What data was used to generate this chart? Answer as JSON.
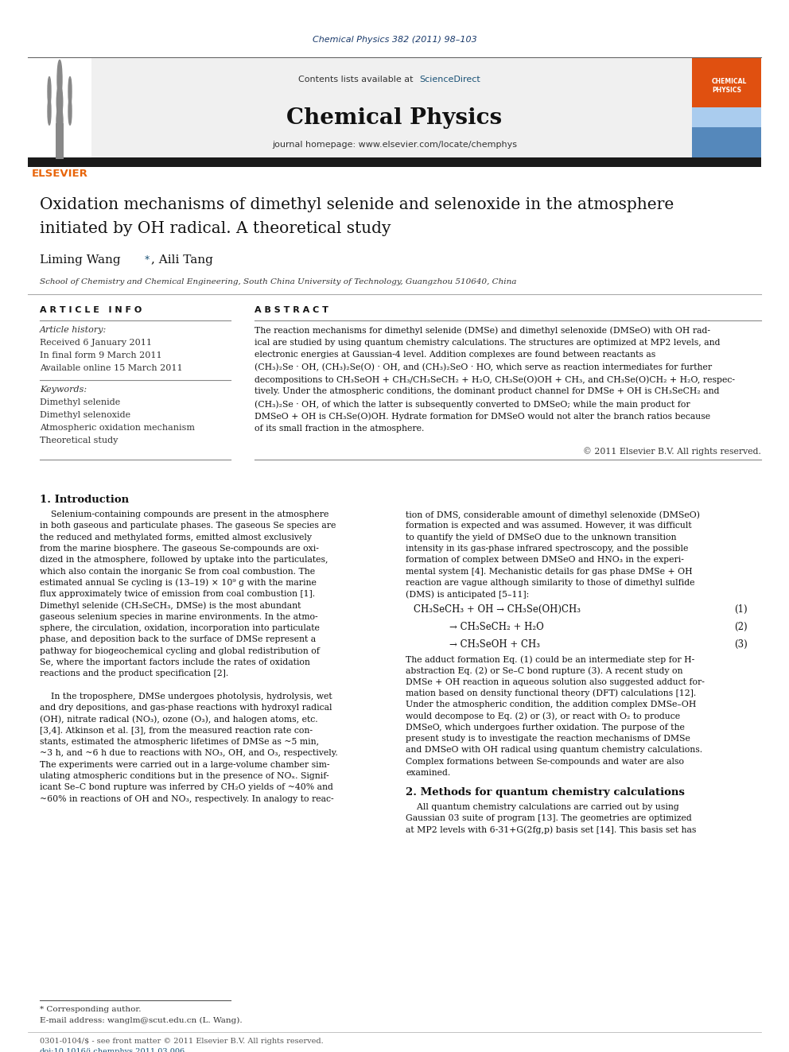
{
  "page_width": 9.92,
  "page_height": 13.23,
  "bg_color": "#ffffff",
  "journal_ref": "Chemical Physics 382 (2011) 98–103",
  "journal_ref_color": "#1a3a6b",
  "contents_text": "Contents lists available at ",
  "sciencedirect_text": "ScienceDirect",
  "sciencedirect_color": "#1a5276",
  "journal_name": "Chemical Physics",
  "journal_homepage": "journal homepage: www.elsevier.com/locate/chemphys",
  "header_bg": "#f0f0f0",
  "elsevier_color": "#e8650a",
  "black_bar_color": "#1a1a1a",
  "article_title_line1": "Oxidation mechanisms of dimethyl selenide and selenoxide in the atmosphere",
  "article_title_line2": "initiated by OH radical. A theoretical study",
  "authors": "Liming Wang ",
  "authors_star": "*",
  "authors2": ", Aili Tang",
  "affiliation": "School of Chemistry and Chemical Engineering, South China University of Technology, Guangzhou 510640, China",
  "article_info_header": "A R T I C L E   I N F O",
  "abstract_header": "A B S T R A C T",
  "article_history_label": "Article history:",
  "received": "Received 6 January 2011",
  "final_form": "In final form 9 March 2011",
  "available": "Available online 15 March 2011",
  "keywords_label": "Keywords:",
  "keyword1": "Dimethyl selenide",
  "keyword2": "Dimethyl selenoxide",
  "keyword3": "Atmospheric oxidation mechanism",
  "keyword4": "Theoretical study",
  "copyright": "© 2011 Elsevier B.V. All rights reserved.",
  "section1_title": "1. Introduction",
  "eq1": "CH₃SeCH₃ + OH → CH₃Se(OH)CH₃",
  "eq1_num": "(1)",
  "eq2": "→ CH₃SeCH₂ + H₂O",
  "eq2_num": "(2)",
  "eq3": "→ CH₃SeOH + CH₃",
  "eq3_num": "(3)",
  "section2_title": "2. Methods for quantum chemistry calculations",
  "footnote_star": "* Corresponding author.",
  "footnote_email": "E-mail address: wanglm@scut.edu.cn (L. Wang).",
  "footer_left": "0301-0104/$ - see front matter © 2011 Elsevier B.V. All rights reserved.",
  "footer_doi": "doi:10.1016/j.chemphys.2011.03.006",
  "abstract_lines": [
    "The reaction mechanisms for dimethyl selenide (DMSe) and dimethyl selenoxide (DMSeO) with OH rad-",
    "ical are studied by using quantum chemistry calculations. The structures are optimized at MP2 levels, and",
    "electronic energies at Gaussian-4 level. Addition complexes are found between reactants as",
    "(CH₃)₂Se · OH, (CH₃)₂Se(O) · OH, and (CH₃)₂SeO · HO, which serve as reaction intermediates for further",
    "decompositions to CH₃SeOH + CH₃/CH₃SeCH₂ + H₂O, CH₃Se(O)OH + CH₃, and CH₃Se(O)CH₂ + H₂O, respec-",
    "tively. Under the atmospheric conditions, the dominant product channel for DMSe + OH is CH₃SeCH₂ and",
    "(CH₃)₂Se · OH, of which the latter is subsequently converted to DMSeO; while the main product for",
    "DMSeO + OH is CH₃Se(O)OH. Hydrate formation for DMSeO would not alter the branch ratios because",
    "of its small fraction in the atmosphere."
  ],
  "left_col_lines": [
    "    Selenium-containing compounds are present in the atmosphere",
    "in both gaseous and particulate phases. The gaseous Se species are",
    "the reduced and methylated forms, emitted almost exclusively",
    "from the marine biosphere. The gaseous Se-compounds are oxi-",
    "dized in the atmosphere, followed by uptake into the particulates,",
    "which also contain the inorganic Se from coal combustion. The",
    "estimated annual Se cycling is (13–19) × 10⁹ g with the marine",
    "flux approximately twice of emission from coal combustion [1].",
    "Dimethyl selenide (CH₃SeCH₃, DMSe) is the most abundant",
    "gaseous selenium species in marine environments. In the atmo-",
    "sphere, the circulation, oxidation, incorporation into particulate",
    "phase, and deposition back to the surface of DMSe represent a",
    "pathway for biogeochemical cycling and global redistribution of",
    "Se, where the important factors include the rates of oxidation",
    "reactions and the product specification [2].",
    "",
    "    In the troposphere, DMSe undergoes photolysis, hydrolysis, wet",
    "and dry depositions, and gas-phase reactions with hydroxyl radical",
    "(OH), nitrate radical (NO₃), ozone (O₃), and halogen atoms, etc.",
    "[3,4]. Atkinson et al. [3], from the measured reaction rate con-",
    "stants, estimated the atmospheric lifetimes of DMSe as ~5 min,",
    "~3 h, and ~6 h due to reactions with NO₃, OH, and O₃, respectively.",
    "The experiments were carried out in a large-volume chamber sim-",
    "ulating atmospheric conditions but in the presence of NOₓ. Signif-",
    "icant Se–C bond rupture was inferred by CH₂O yields of ~40% and",
    "~60% in reactions of OH and NO₃, respectively. In analogy to reac-"
  ],
  "right_col_lines": [
    "tion of DMS, considerable amount of dimethyl selenoxide (DMSeO)",
    "formation is expected and was assumed. However, it was difficult",
    "to quantify the yield of DMSeO due to the unknown transition",
    "intensity in its gas-phase infrared spectroscopy, and the possible",
    "formation of complex between DMSeO and HNO₃ in the experi-",
    "mental system [4]. Mechanistic details for gas phase DMSe + OH",
    "reaction are vague although similarity to those of dimethyl sulfide",
    "(DMS) is anticipated [5–11]:"
  ],
  "adduct_lines": [
    "The adduct formation Eq. (1) could be an intermediate step for H-",
    "abstraction Eq. (2) or Se–C bond rupture (3). A recent study on",
    "DMSe + OH reaction in aqueous solution also suggested adduct for-",
    "mation based on density functional theory (DFT) calculations [12].",
    "Under the atmospheric condition, the addition complex DMSe–OH",
    "would decompose to Eq. (2) or (3), or react with O₂ to produce",
    "DMSeO, which undergoes further oxidation. The purpose of the",
    "present study is to investigate the reaction mechanisms of DMSe",
    "and DMSeO with OH radical using quantum chemistry calculations.",
    "Complex formations between Se-compounds and water are also",
    "examined."
  ],
  "methods_lines": [
    "    All quantum chemistry calculations are carried out by using",
    "Gaussian 03 suite of program [13]. The geometries are optimized",
    "at MP2 levels with 6-31+G(2fg,p) basis set [14]. This basis set has"
  ]
}
